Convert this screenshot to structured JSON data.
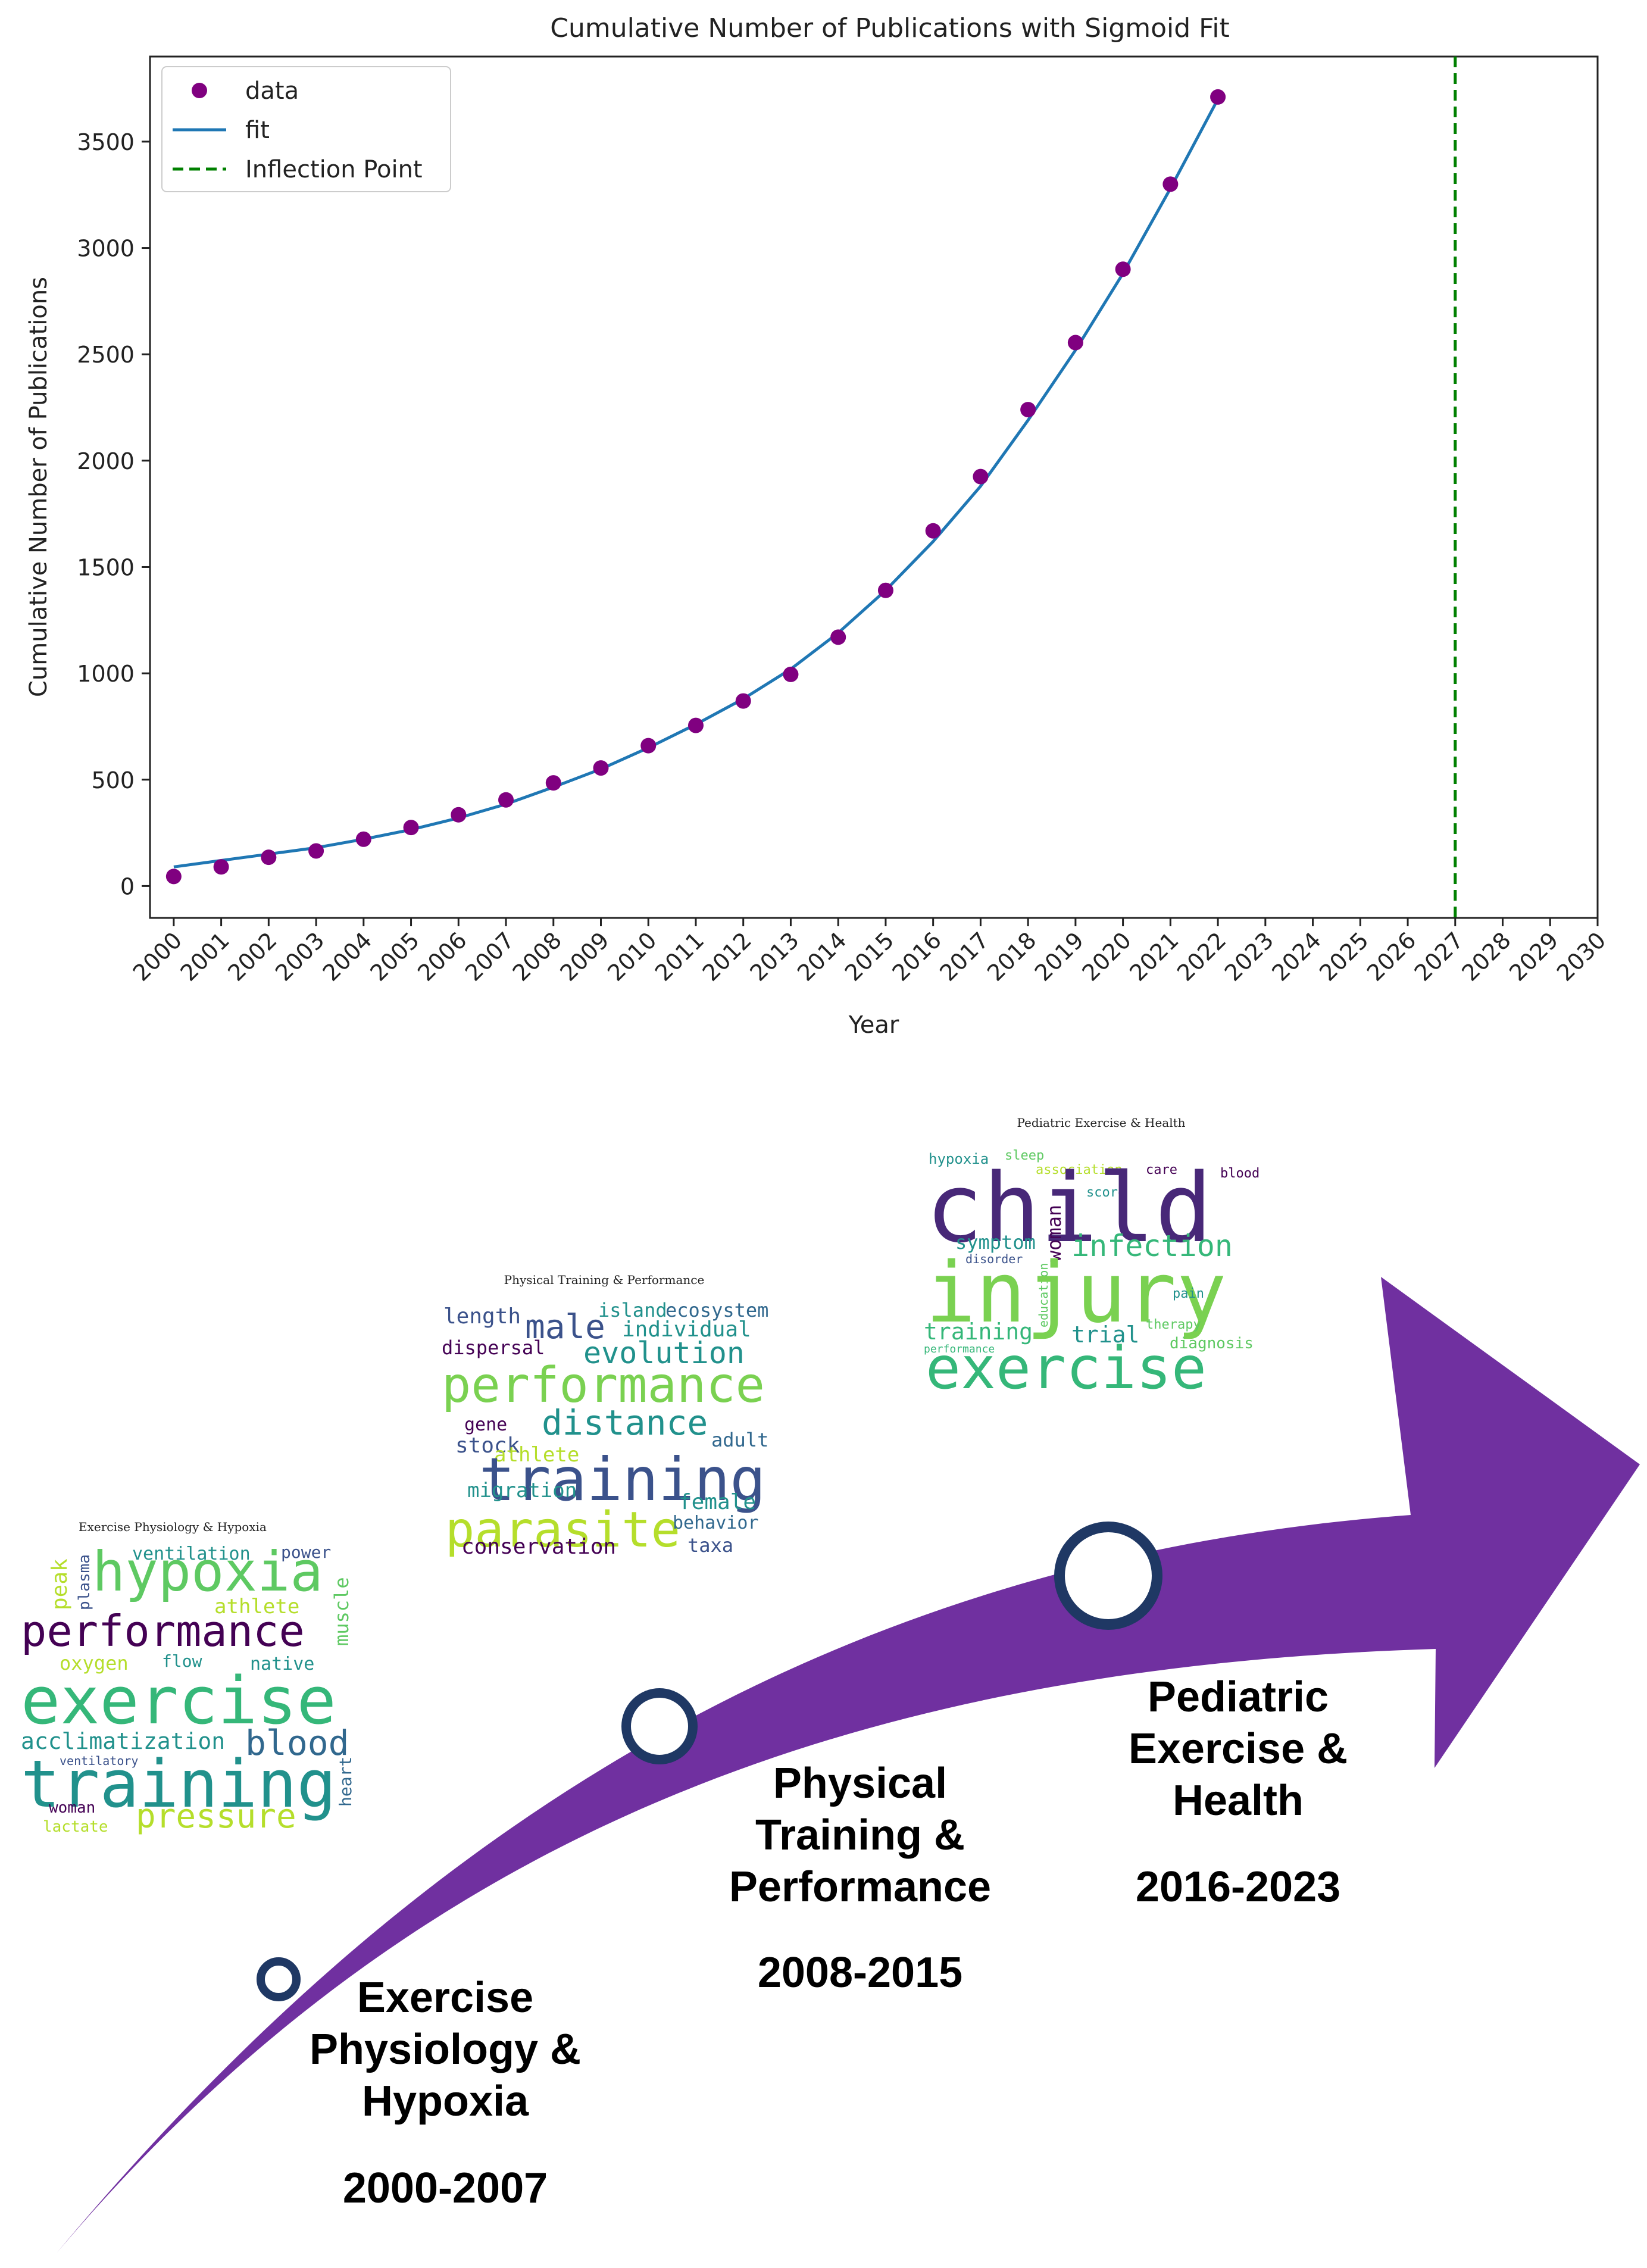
{
  "chart_data": {
    "type": "scatter",
    "title": "Cumulative Number of Publications with Sigmoid Fit",
    "xlabel": "Year",
    "ylabel": "Cumulative Number of Publications",
    "xlim": [
      1999.5,
      2030
    ],
    "ylim": [
      -150,
      3900
    ],
    "x_ticks": [
      2000,
      2001,
      2002,
      2003,
      2004,
      2005,
      2006,
      2007,
      2008,
      2009,
      2010,
      2011,
      2012,
      2013,
      2014,
      2015,
      2016,
      2017,
      2018,
      2019,
      2020,
      2021,
      2022,
      2023,
      2024,
      2025,
      2026,
      2027,
      2028,
      2029,
      2030
    ],
    "y_ticks": [
      0,
      500,
      1000,
      1500,
      2000,
      2500,
      3000,
      3500
    ],
    "legend_position": "upper-left",
    "series": [
      {
        "name": "data",
        "kind": "scatter",
        "color": "#800080",
        "x": [
          2000,
          2001,
          2002,
          2003,
          2004,
          2005,
          2006,
          2007,
          2008,
          2009,
          2010,
          2011,
          2012,
          2013,
          2014,
          2015,
          2016,
          2017,
          2018,
          2019,
          2020,
          2021,
          2022
        ],
        "y": [
          45,
          90,
          135,
          165,
          220,
          275,
          335,
          405,
          485,
          555,
          660,
          755,
          870,
          995,
          1170,
          1390,
          1670,
          1925,
          2240,
          2555,
          2900,
          3300,
          3710
        ]
      },
      {
        "name": "fit",
        "kind": "line",
        "color": "#1f77b4",
        "x": [
          2000,
          2001,
          2002,
          2003,
          2004,
          2005,
          2006,
          2007,
          2008,
          2009,
          2010,
          2011,
          2012,
          2013,
          2014,
          2015,
          2016,
          2017,
          2018,
          2019,
          2020,
          2021,
          2022
        ],
        "y": [
          90,
          120,
          150,
          180,
          220,
          265,
          320,
          385,
          465,
          550,
          650,
          760,
          880,
          1020,
          1190,
          1390,
          1620,
          1880,
          2190,
          2520,
          2880,
          3280,
          3700
        ]
      },
      {
        "name": "Inflection Point",
        "kind": "vline",
        "color": "#008000",
        "x": 2027
      }
    ]
  },
  "timeline": {
    "arrow_color": "#7030A0",
    "circle_ring_color": "#1F3864",
    "periods": [
      {
        "title": [
          "Exercise",
          "Physiology &",
          "Hypoxia"
        ],
        "years": "2000-2007"
      },
      {
        "title": [
          "Physical",
          "Training &",
          "Performance"
        ],
        "years": "2008-2015"
      },
      {
        "title": [
          "Pediatric",
          "Exercise &",
          "Health"
        ],
        "years": "2016-2023"
      }
    ]
  },
  "wordclouds": [
    {
      "title": "Exercise Physiology & Hypoxia",
      "words": [
        {
          "text": "hypoxia",
          "color": "#5ec962"
        },
        {
          "text": "ventilation",
          "color": "#21918c"
        },
        {
          "text": "power",
          "color": "#3b528b"
        },
        {
          "text": "athlete",
          "color": "#b5de2b"
        },
        {
          "text": "peak",
          "color": "#b5de2b"
        },
        {
          "text": "plasma",
          "color": "#3b528b"
        },
        {
          "text": "muscle",
          "color": "#5ec962"
        },
        {
          "text": "performance",
          "color": "#440154"
        },
        {
          "text": "oxygen",
          "color": "#b5de2b"
        },
        {
          "text": "flow",
          "color": "#21918c"
        },
        {
          "text": "native",
          "color": "#21918c"
        },
        {
          "text": "exercise",
          "color": "#35b779"
        },
        {
          "text": "acclimatization",
          "color": "#21918c"
        },
        {
          "text": "blood",
          "color": "#31688e"
        },
        {
          "text": "ventilatory",
          "color": "#3b528b"
        },
        {
          "text": "training",
          "color": "#21918c"
        },
        {
          "text": "heart",
          "color": "#31688e"
        },
        {
          "text": "woman",
          "color": "#440154"
        },
        {
          "text": "lactate",
          "color": "#b5de2b"
        },
        {
          "text": "pressure",
          "color": "#b5de2b"
        }
      ]
    },
    {
      "title": "Physical Training & Performance",
      "words": [
        {
          "text": "length",
          "color": "#3b528b"
        },
        {
          "text": "island",
          "color": "#21918c"
        },
        {
          "text": "ecosystem",
          "color": "#31688e"
        },
        {
          "text": "male",
          "color": "#3b528b"
        },
        {
          "text": "individual",
          "color": "#21918c"
        },
        {
          "text": "dispersal",
          "color": "#440154"
        },
        {
          "text": "evolution",
          "color": "#21918c"
        },
        {
          "text": "performance",
          "color": "#7ad151"
        },
        {
          "text": "gene",
          "color": "#440154"
        },
        {
          "text": "distance",
          "color": "#21918c"
        },
        {
          "text": "stock",
          "color": "#3b528b"
        },
        {
          "text": "athlete",
          "color": "#b5de2b"
        },
        {
          "text": "adult",
          "color": "#31688e"
        },
        {
          "text": "training",
          "color": "#3b528b"
        },
        {
          "text": "migration",
          "color": "#21918c"
        },
        {
          "text": "female",
          "color": "#21918c"
        },
        {
          "text": "parasite",
          "color": "#b5de2b"
        },
        {
          "text": "behavior",
          "color": "#31688e"
        },
        {
          "text": "conservation",
          "color": "#440154"
        },
        {
          "text": "taxa",
          "color": "#3b528b"
        }
      ]
    },
    {
      "title": "Pediatric Exercise & Health",
      "words": [
        {
          "text": "hypoxia",
          "color": "#21918c"
        },
        {
          "text": "sleep",
          "color": "#5ec962"
        },
        {
          "text": "association",
          "color": "#b5de2b"
        },
        {
          "text": "care",
          "color": "#440154"
        },
        {
          "text": "blood",
          "color": "#440154"
        },
        {
          "text": "score",
          "color": "#21918c"
        },
        {
          "text": "child",
          "color": "#482878"
        },
        {
          "text": "woman",
          "color": "#440154"
        },
        {
          "text": "symptom",
          "color": "#21918c"
        },
        {
          "text": "infection",
          "color": "#35b779"
        },
        {
          "text": "disorder",
          "color": "#3b528b"
        },
        {
          "text": "education",
          "color": "#5ec962"
        },
        {
          "text": "injury",
          "color": "#7ad151"
        },
        {
          "text": "pain",
          "color": "#21918c"
        },
        {
          "text": "training",
          "color": "#35b779"
        },
        {
          "text": "trial",
          "color": "#21918c"
        },
        {
          "text": "therapy",
          "color": "#5ec962"
        },
        {
          "text": "performance",
          "color": "#35b779"
        },
        {
          "text": "diagnosis",
          "color": "#5ec962"
        },
        {
          "text": "exercise",
          "color": "#35b779"
        }
      ]
    }
  ]
}
